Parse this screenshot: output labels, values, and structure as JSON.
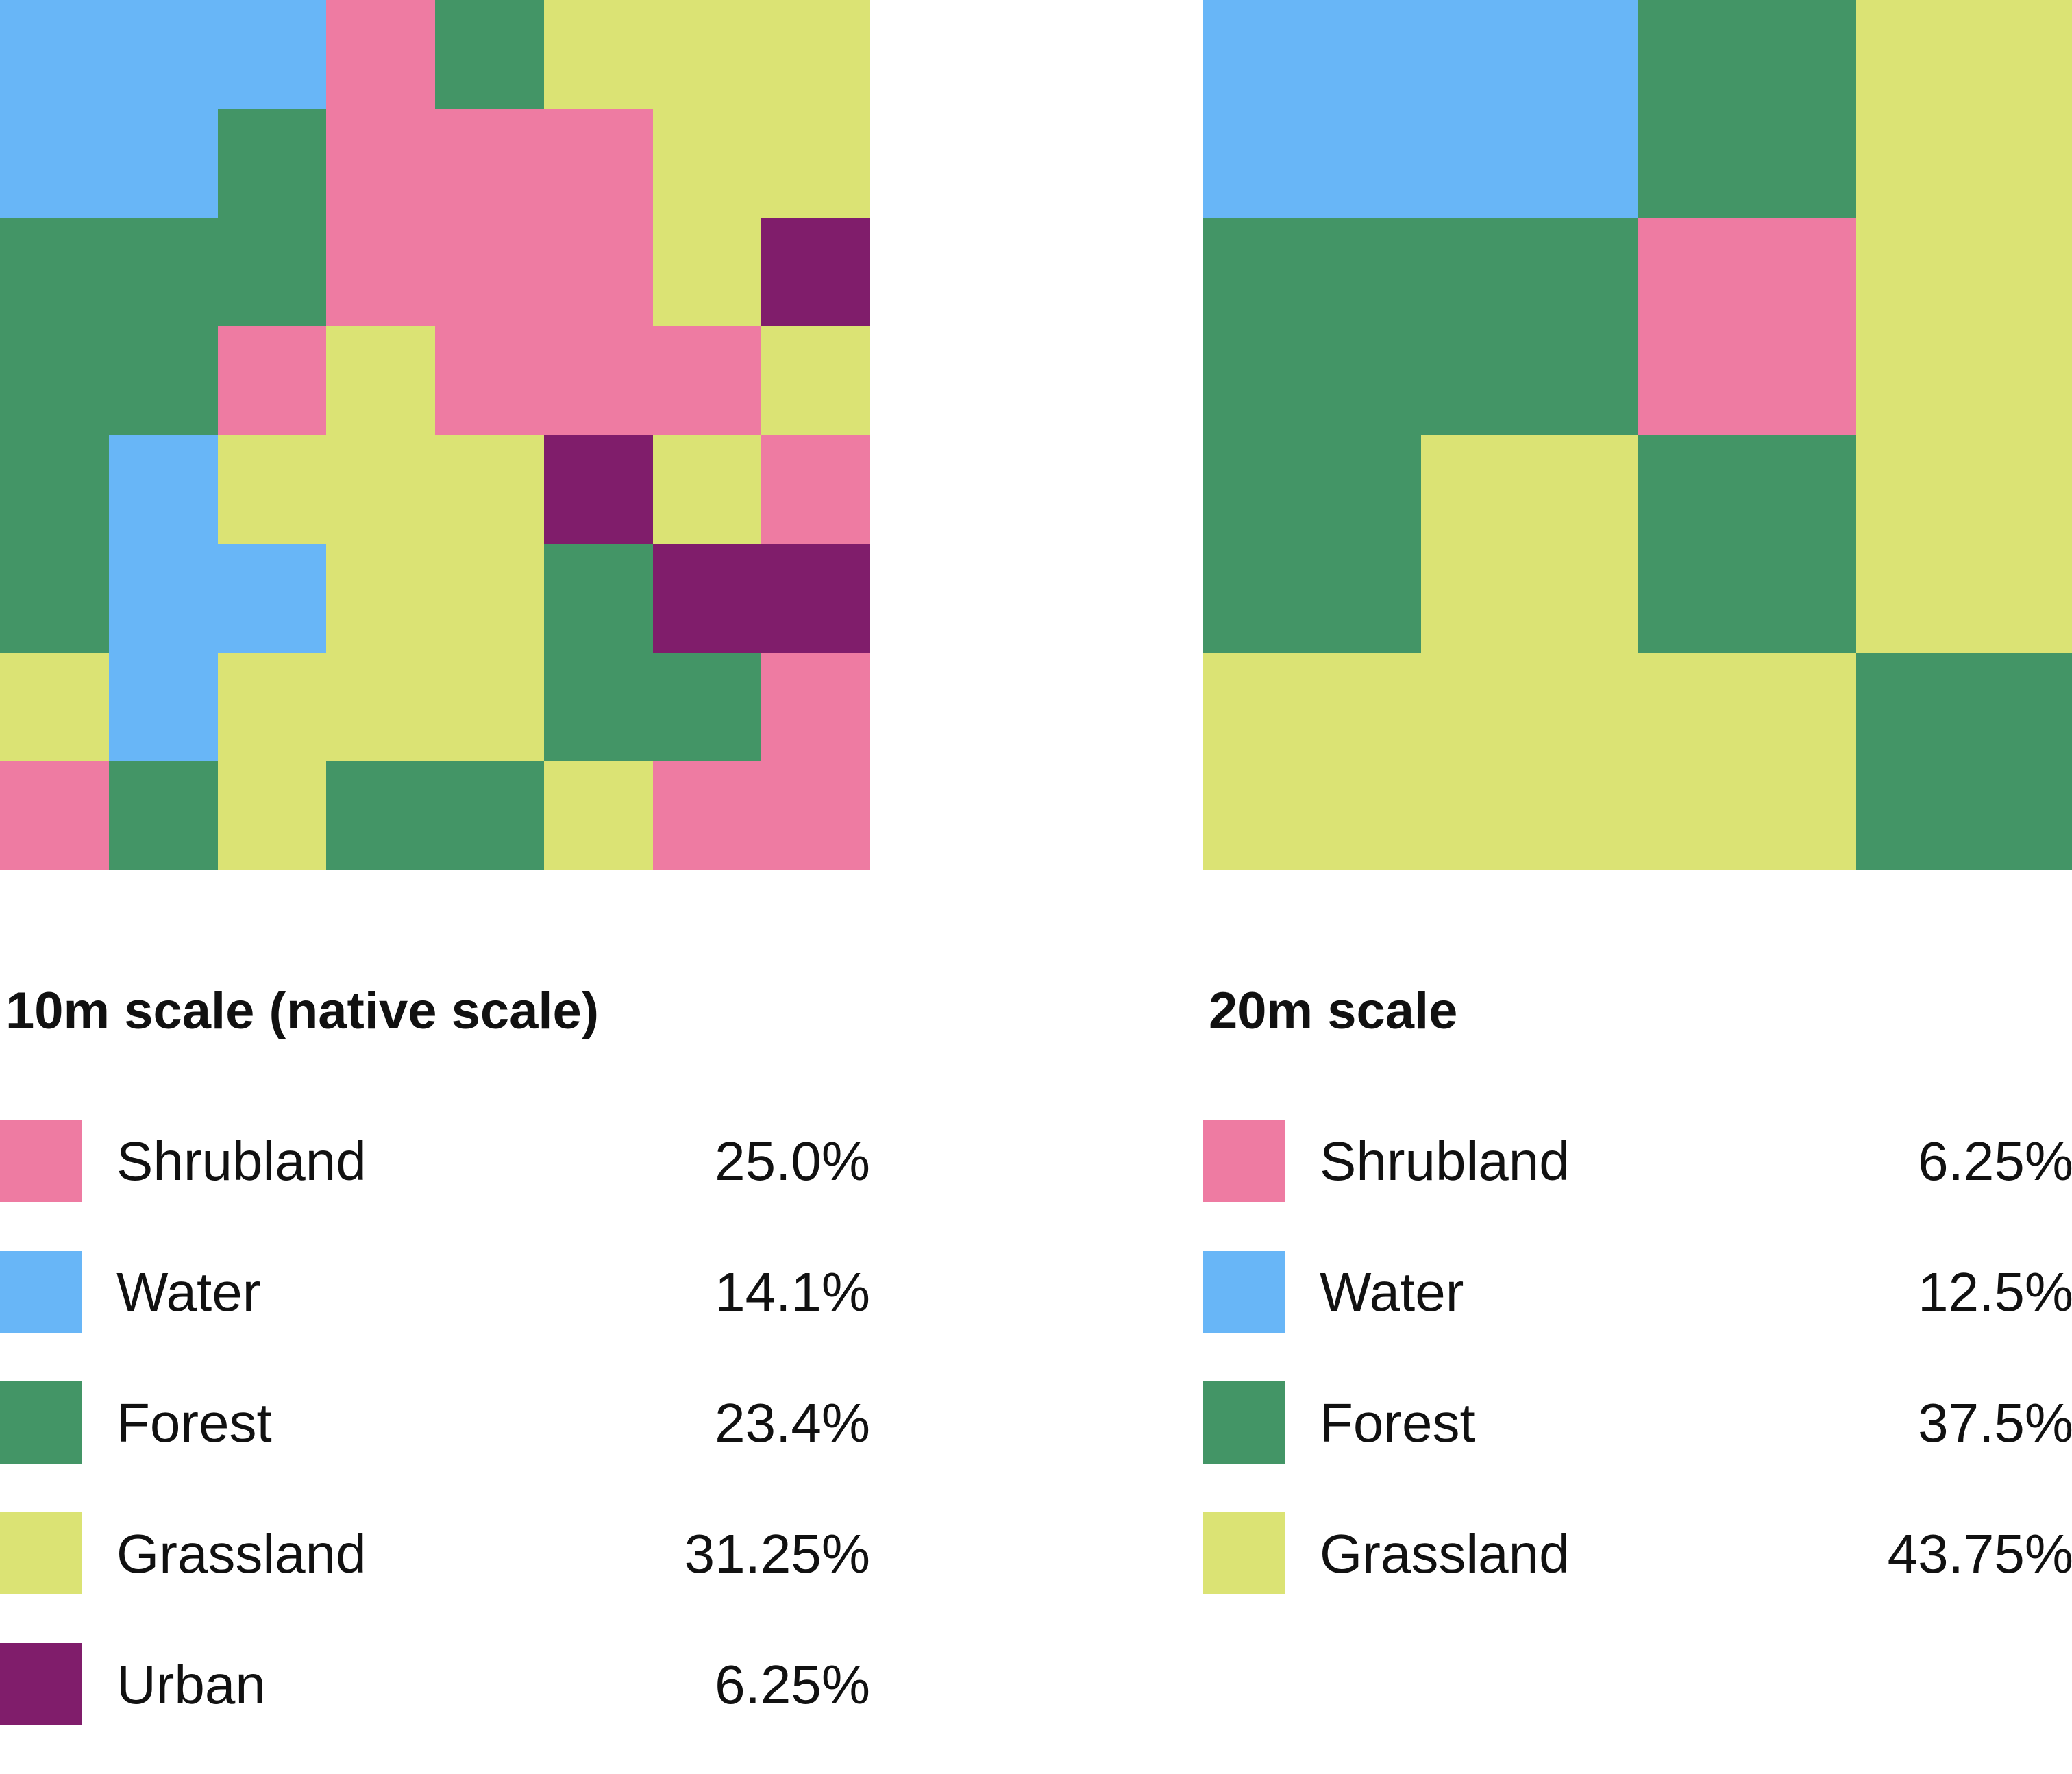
{
  "colors": {
    "Shrubland": "#EE7BA2",
    "Water": "#68B6F7",
    "Forest": "#439566",
    "Grassland": "#DBE374",
    "Urban": "#801D6B"
  },
  "panels": [
    {
      "title": "10m scale (native scale)",
      "grid": [
        [
          "Water",
          "Water",
          "Water",
          "Shrubland",
          "Forest",
          "Grassland",
          "Grassland",
          "Grassland"
        ],
        [
          "Water",
          "Water",
          "Forest",
          "Shrubland",
          "Shrubland",
          "Shrubland",
          "Grassland",
          "Grassland"
        ],
        [
          "Forest",
          "Forest",
          "Forest",
          "Shrubland",
          "Shrubland",
          "Shrubland",
          "Grassland",
          "Urban"
        ],
        [
          "Forest",
          "Forest",
          "Shrubland",
          "Grassland",
          "Shrubland",
          "Shrubland",
          "Shrubland",
          "Grassland"
        ],
        [
          "Forest",
          "Water",
          "Grassland",
          "Grassland",
          "Grassland",
          "Urban",
          "Grassland",
          "Shrubland"
        ],
        [
          "Forest",
          "Water",
          "Water",
          "Grassland",
          "Grassland",
          "Forest",
          "Urban",
          "Urban"
        ],
        [
          "Grassland",
          "Water",
          "Grassland",
          "Grassland",
          "Grassland",
          "Forest",
          "Forest",
          "Shrubland"
        ],
        [
          "Shrubland",
          "Forest",
          "Grassland",
          "Forest",
          "Forest",
          "Grassland",
          "Shrubland",
          "Shrubland"
        ]
      ],
      "legend": [
        {
          "label": "Shrubland",
          "value": "25.0%"
        },
        {
          "label": "Water",
          "value": "14.1%"
        },
        {
          "label": "Forest",
          "value": "23.4%"
        },
        {
          "label": "Grassland",
          "value": "31.25%"
        },
        {
          "label": "Urban",
          "value": "6.25%"
        }
      ]
    },
    {
      "title": "20m scale",
      "grid": [
        [
          "Water",
          "Water",
          "Forest",
          "Grassland"
        ],
        [
          "Forest",
          "Forest",
          "Shrubland",
          "Grassland"
        ],
        [
          "Forest",
          "Grassland",
          "Forest",
          "Grassland"
        ],
        [
          "Grassland",
          "Grassland",
          "Grassland",
          "Forest"
        ]
      ],
      "legend": [
        {
          "label": "Shrubland",
          "value": "6.25%"
        },
        {
          "label": "Water",
          "value": "12.5%"
        },
        {
          "label": "Forest",
          "value": "37.5%"
        },
        {
          "label": "Grassland",
          "value": "43.75%"
        }
      ]
    }
  ]
}
